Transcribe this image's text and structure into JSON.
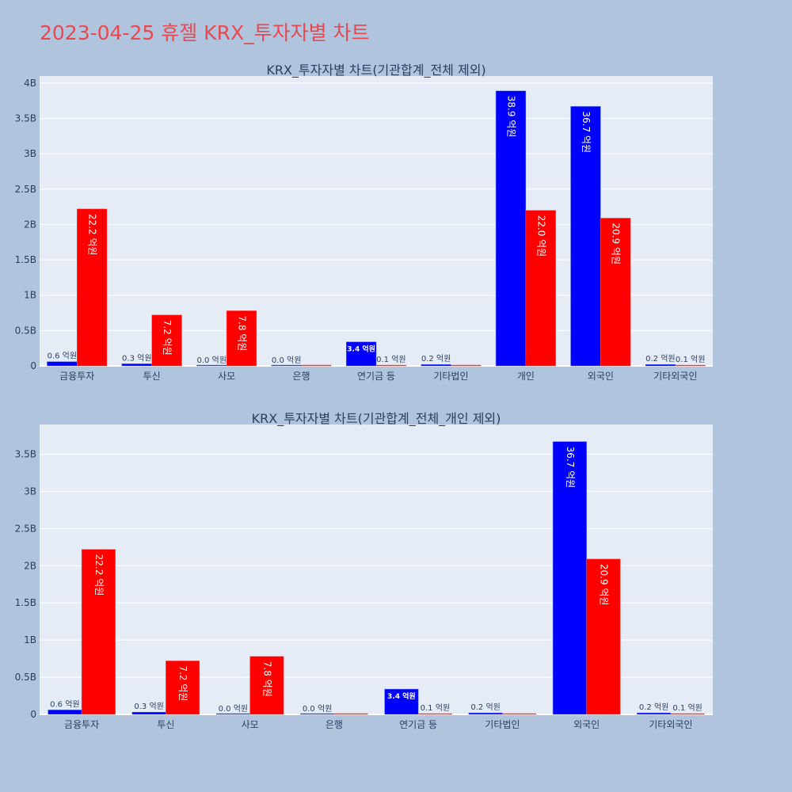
{
  "title": "2023-04-25 휴젤 KRX_투자자별 차트",
  "colors": {
    "buy": "#0000ff",
    "sell": "#ff0000",
    "plot_bg": "#e5ecf6",
    "page_bg": "#b0c4de"
  },
  "chart_data": [
    {
      "type": "bar",
      "title": "KRX_투자자별 차트(기관합계_전체 제외)",
      "categories": [
        "금융투자",
        "투신",
        "사모",
        "은행",
        "연기금 등",
        "기타법인",
        "개인",
        "외국인",
        "기타외국인"
      ],
      "series": [
        {
          "values": [
            0.06,
            0.03,
            0.0,
            0.0,
            0.34,
            0.02,
            3.89,
            3.67,
            0.02
          ],
          "labels": [
            "0.6 억원",
            "0.3 억원",
            "0.0 억원",
            "0.0 억원",
            "3.4 억원",
            "0.2 억원",
            "38.9 억원",
            "36.7 억원",
            "0.2 억원"
          ]
        },
        {
          "values": [
            2.22,
            0.72,
            0.78,
            0.0,
            0.01,
            0.0,
            2.2,
            2.09,
            0.01
          ],
          "labels": [
            "22.2 억원",
            "7.2 억원",
            "7.8 억원",
            "",
            "0.1 억원",
            "",
            "22.0 억원",
            "20.9 억원",
            "0.1 억원"
          ]
        }
      ],
      "yticks": [
        "0",
        "0.5B",
        "1B",
        "1.5B",
        "2B",
        "2.5B",
        "3B",
        "3.5B",
        "4B"
      ],
      "ylim": [
        0,
        4.1
      ]
    },
    {
      "type": "bar",
      "title": "KRX_투자자별 차트(기관합계_전체_개인 제외)",
      "categories": [
        "금융투자",
        "투신",
        "사모",
        "은행",
        "연기금 등",
        "기타법인",
        "외국인",
        "기타외국인"
      ],
      "series": [
        {
          "values": [
            0.06,
            0.03,
            0.0,
            0.0,
            0.34,
            0.02,
            3.67,
            0.02
          ],
          "labels": [
            "0.6 억원",
            "0.3 억원",
            "0.0 억원",
            "0.0 억원",
            "3.4 억원",
            "0.2 억원",
            "36.7 억원",
            "0.2 억원"
          ]
        },
        {
          "values": [
            2.22,
            0.72,
            0.78,
            0.0,
            0.01,
            0.0,
            2.09,
            0.01
          ],
          "labels": [
            "22.2 억원",
            "7.2 억원",
            "7.8 억원",
            "",
            "0.1 억원",
            "",
            "20.9 억원",
            "0.1 억원"
          ]
        }
      ],
      "yticks": [
        "0",
        "0.5B",
        "1B",
        "1.5B",
        "2B",
        "2.5B",
        "3B",
        "3.5B"
      ],
      "ylim": [
        0,
        3.9
      ]
    }
  ]
}
